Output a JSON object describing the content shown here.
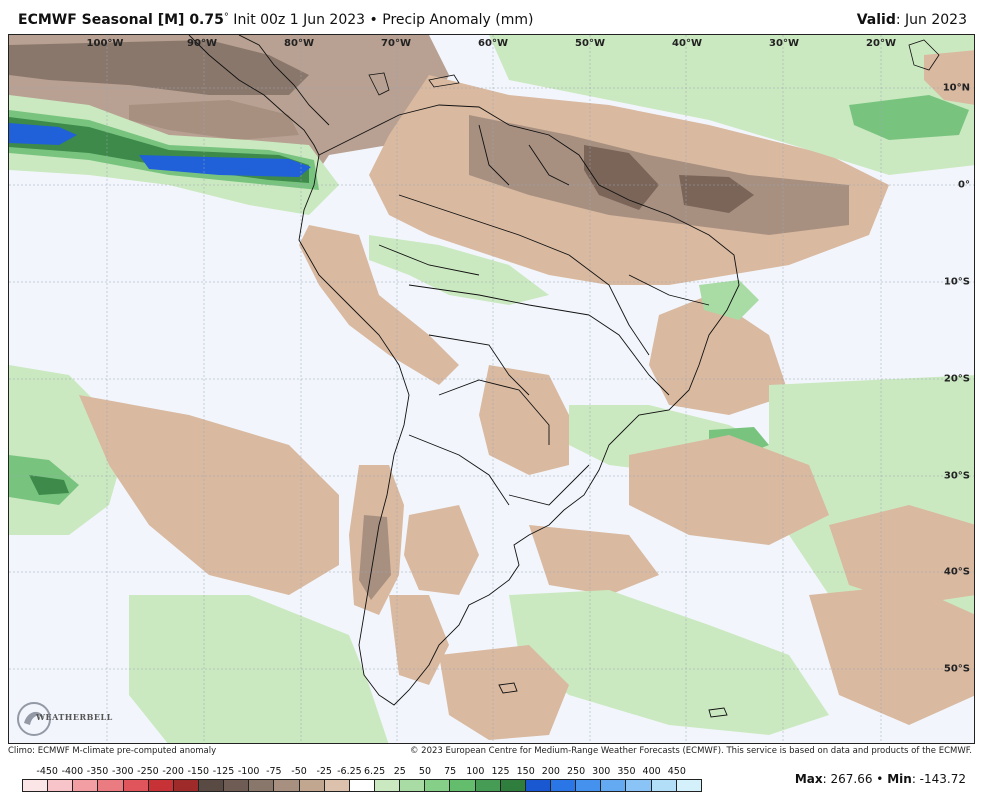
{
  "header": {
    "model": "ECMWF Seasonal [M] 0.75",
    "degree": "°",
    "init": " Init 00z 1 Jun 2023",
    "bullet": " • ",
    "field": "Precip Anomaly (mm)",
    "valid_label": "Valid",
    "valid_value": ": Jun 2023"
  },
  "map": {
    "lon_labels": [
      "100°W",
      "90°W",
      "80°W",
      "70°W",
      "60°W",
      "50°W",
      "40°W",
      "30°W",
      "20°W"
    ],
    "lat_labels": [
      "10°N",
      "0°",
      "10°S",
      "20°S",
      "30°S",
      "40°S",
      "50°S"
    ],
    "logo_text": "WEATHERBELL",
    "legend": {
      "anomaly_colors": {
        "strong_dry": "#7a6558",
        "moderate_dry": "#a89081",
        "slight_dry": "#d9b9a0",
        "neutral": "#f2f6fc",
        "slight_wet": "#cbe9c0",
        "moderate_wet": "#78c47f",
        "strong_wet": "#3d8a4a",
        "very_wet": "#2060d8"
      }
    }
  },
  "footer": {
    "climo": "Climo: ECMWF M-climate pre-computed anomaly",
    "copyright": "© 2023 European Centre for Medium-Range Weather Forecasts (ECMWF). This service is based on data and products of the ECMWF."
  },
  "colorbar": {
    "labels": [
      "-450",
      "-400",
      "-350",
      "-300",
      "-250",
      "-200",
      "-150",
      "-125",
      "-100",
      "-75",
      "-50",
      "-25",
      "-6.25",
      "6.25",
      "25",
      "50",
      "75",
      "100",
      "125",
      "150",
      "200",
      "250",
      "300",
      "350",
      "400",
      "450"
    ],
    "colors": [
      "#fbe5e6",
      "#f7c5c9",
      "#f29ea3",
      "#ea7b80",
      "#e0555b",
      "#c73236",
      "#9e2a2a",
      "#5a4a44",
      "#6f5d55",
      "#8a776b",
      "#a89081",
      "#c2a790",
      "#dcc2ac",
      "#ffffff",
      "#cbe9c0",
      "#a9dca4",
      "#86cf88",
      "#63bd6c",
      "#469c54",
      "#2f7e3e",
      "#1a58d2",
      "#2b76e6",
      "#4592ee",
      "#64aaf2",
      "#8ac4f6",
      "#b2def8",
      "#d4f0fb"
    ]
  },
  "stats": {
    "max_label": "Max",
    "max_value": ": 267.66",
    "sep": " • ",
    "min_label": "Min",
    "min_value": ": -143.72"
  }
}
